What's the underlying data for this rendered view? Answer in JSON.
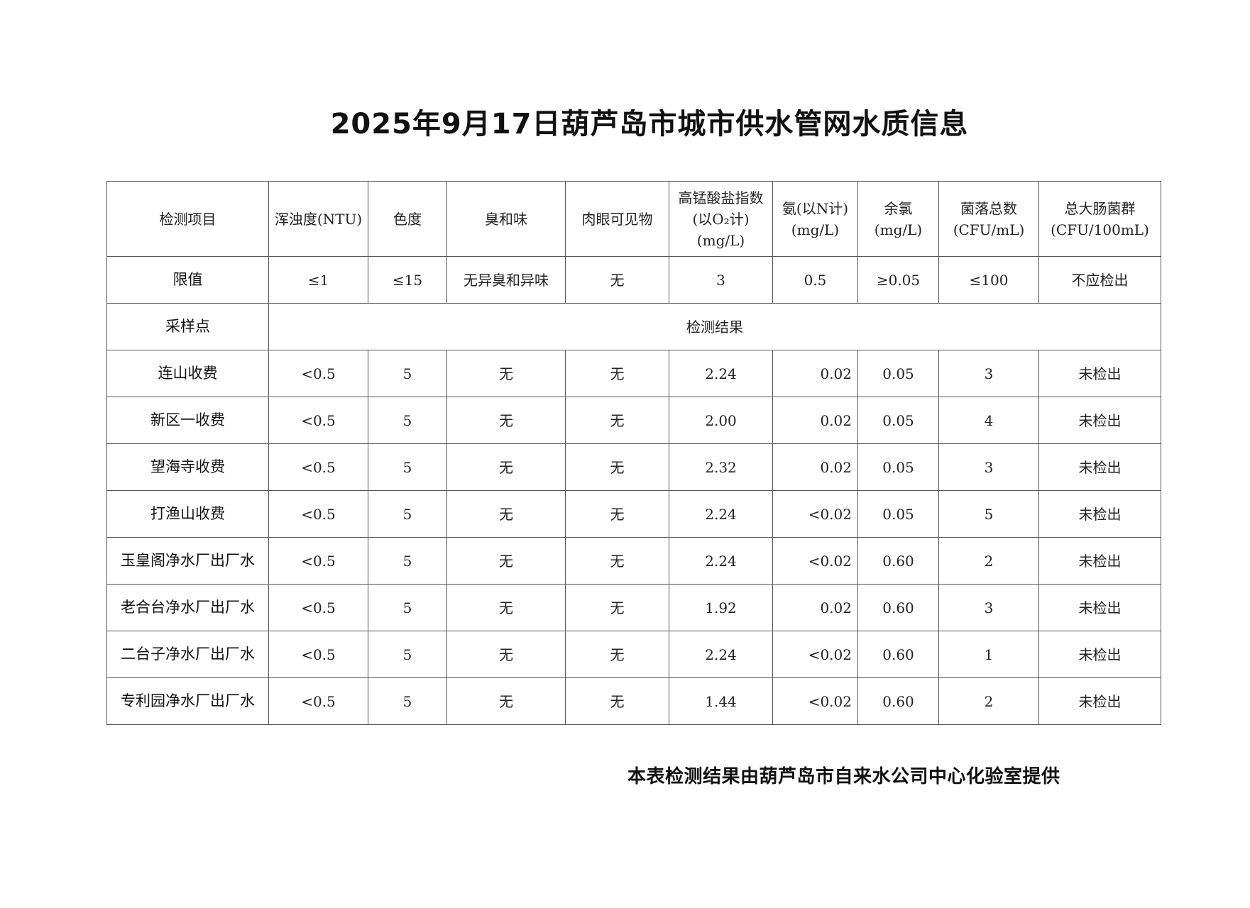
{
  "title": "2025年9月17日葫芦岛市城市供水管网水质信息",
  "table": {
    "headers": [
      [
        "检测项目"
      ],
      [
        "浑浊度(NTU)"
      ],
      [
        "色度"
      ],
      [
        "臭和味"
      ],
      [
        "肉眼可见物"
      ],
      [
        "高锰酸盐指数",
        "(以O₂计)",
        "(mg/L)"
      ],
      [
        "氨(以N计)",
        "(mg/L)"
      ],
      [
        "余氯",
        "(mg/L)"
      ],
      [
        "菌落总数",
        "(CFU/mL)"
      ],
      [
        "总大肠菌群",
        "(CFU/100mL)"
      ]
    ],
    "limits": [
      "限值",
      "≤1",
      "≤15",
      "无异臭和异味",
      "无",
      "3",
      "0.5",
      "≥0.05",
      "≤100",
      "不应检出"
    ],
    "section_row": {
      "label": "采样点",
      "value": "检测结果"
    },
    "rows": [
      [
        "连山收费",
        "<0.5",
        "5",
        "无",
        "无",
        "2.24",
        "0.02",
        "0.05",
        "3",
        "未检出"
      ],
      [
        "新区一收费",
        "<0.5",
        "5",
        "无",
        "无",
        "2.00",
        "0.02",
        "0.05",
        "4",
        "未检出"
      ],
      [
        "望海寺收费",
        "<0.5",
        "5",
        "无",
        "无",
        "2.32",
        "0.02",
        "0.05",
        "3",
        "未检出"
      ],
      [
        "打渔山收费",
        "<0.5",
        "5",
        "无",
        "无",
        "2.24",
        "<0.02",
        "0.05",
        "5",
        "未检出"
      ],
      [
        "玉皇阁净水厂出厂水",
        "<0.5",
        "5",
        "无",
        "无",
        "2.24",
        "<0.02",
        "0.60",
        "2",
        "未检出"
      ],
      [
        "老合台净水厂出厂水",
        "<0.5",
        "5",
        "无",
        "无",
        "1.92",
        "0.02",
        "0.60",
        "3",
        "未检出"
      ],
      [
        "二台子净水厂出厂水",
        "<0.5",
        "5",
        "无",
        "无",
        "2.24",
        "<0.02",
        "0.60",
        "1",
        "未检出"
      ],
      [
        "专利园净水厂出厂水",
        "<0.5",
        "5",
        "无",
        "无",
        "1.44",
        "<0.02",
        "0.60",
        "2",
        "未检出"
      ]
    ]
  },
  "footer": "本表检测结果由葫芦岛市自来水公司中心化验室提供"
}
